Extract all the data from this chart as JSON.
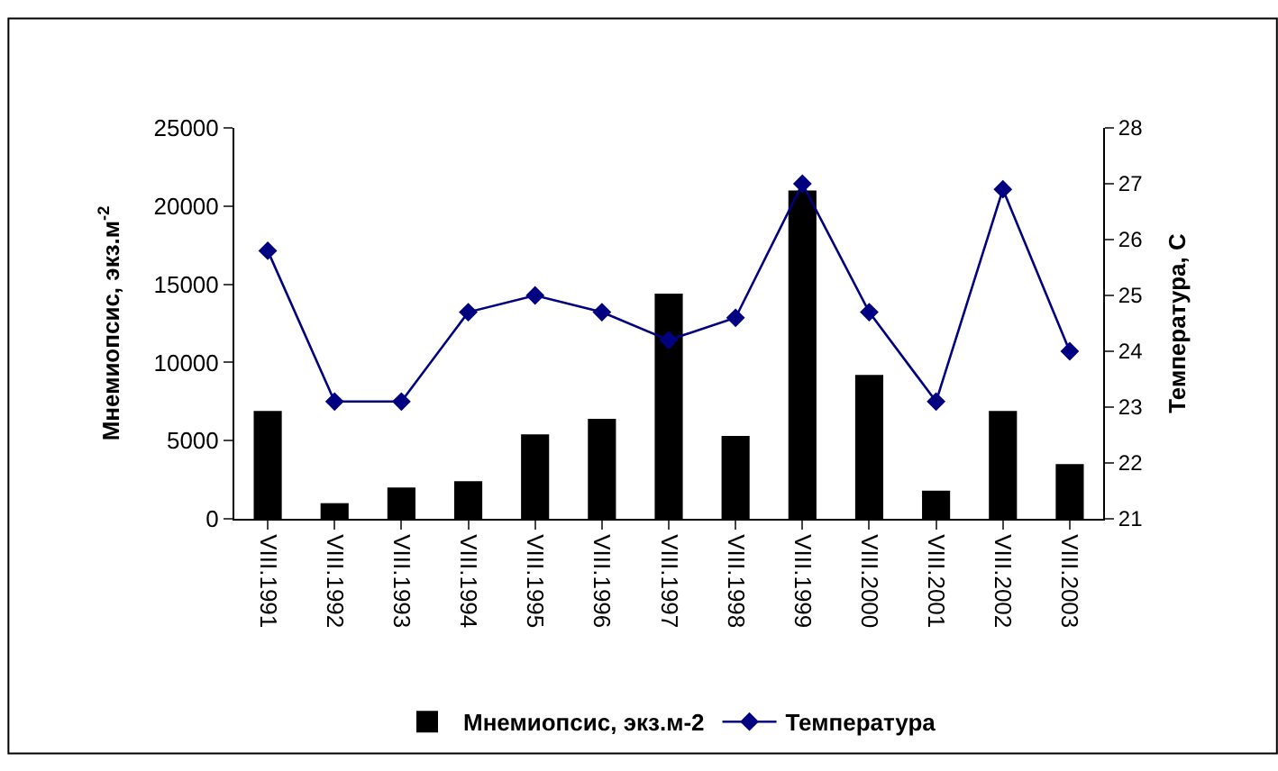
{
  "chart_data": {
    "type": "bar",
    "ylabel": "Мнемиопсис, экз.м$^{-2}$",
    "y2label": "Температура, С",
    "categories": [
      "VIII.1991",
      "VIII.1992",
      "VIII.1993",
      "VIII.1994",
      "VIII.1995",
      "VIII.1996",
      "VIII.1997",
      "VIII.1998",
      "VIII.1999",
      "VIII.2000",
      "VIII.2001",
      "VIII.2002",
      "VIII.2003"
    ],
    "series": [
      {
        "name": "Мнемиопсис, экз.м-2",
        "color": "#000000",
        "values": [
          6900,
          1000,
          2000,
          2400,
          5400,
          6400,
          14400,
          5300,
          21000,
          9200,
          1800,
          6900,
          3500
        ]
      },
      {
        "name": "Температура",
        "type": "line",
        "axis": "y2",
        "color": "#000080",
        "marker": "diamond",
        "values": [
          25.8,
          23.1,
          23.1,
          24.7,
          25.0,
          24.7,
          24.2,
          24.6,
          27.0,
          24.7,
          23.1,
          26.9,
          24.0
        ]
      }
    ],
    "ylim": [
      0,
      25000
    ],
    "yticks": [
      0,
      5000,
      10000,
      15000,
      20000,
      25000
    ],
    "y2lim": [
      21,
      28
    ],
    "y2ticks": [
      21,
      22,
      23,
      24,
      25,
      26,
      27,
      28
    ],
    "legend": "bottom"
  }
}
